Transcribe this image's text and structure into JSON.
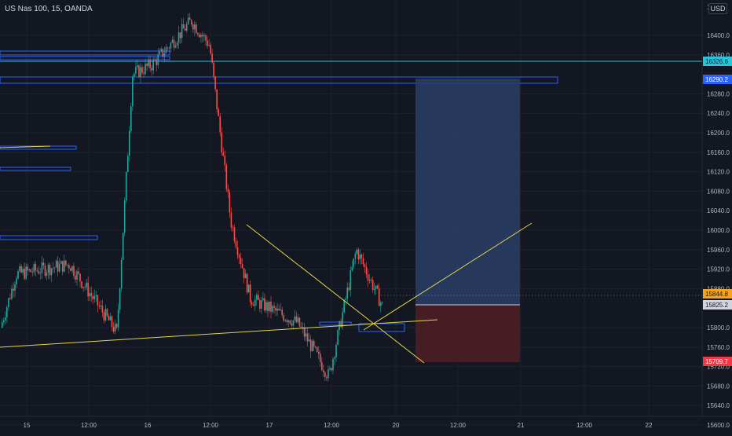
{
  "symbol_title": "US Nas 100, 15, OANDA",
  "currency": "USD",
  "price_axis": {
    "ticks": [
      "16400.0",
      "16360.0",
      "16280.0",
      "16240.0",
      "16200.0",
      "16160.0",
      "16120.0",
      "16080.0",
      "16040.0",
      "16000.0",
      "15960.0",
      "15920.0",
      "15880.0",
      "15800.0",
      "15760.0",
      "15720.0",
      "15680.0",
      "15640.0",
      "15600.0"
    ],
    "top_partial_label": "1…"
  },
  "price_badges": [
    {
      "label": "16326.6",
      "color": "#26c6da",
      "text_color": "#131722"
    },
    {
      "label": "16290.2",
      "color": "#2962ff",
      "text_color": "#ffffff"
    },
    {
      "label": "15844.8",
      "color": "#f7a21b",
      "text_color": "#131722"
    },
    {
      "label": "15825.2",
      "color": "#d1d4dc",
      "text_color": "#131722"
    },
    {
      "label": "15709.7",
      "color": "#f23645",
      "text_color": "#ffffff"
    }
  ],
  "time_axis": [
    "15",
    "12:00",
    "16",
    "12:00",
    "17",
    "12:00",
    "20",
    "12:00",
    "21",
    "12:00",
    "22"
  ],
  "colors": {
    "background": "#131722",
    "grid": "#1e222d",
    "candle_up": "#26a69a",
    "candle_down": "#ef5350",
    "zone_border": "#2962ff",
    "target_zone": "#2a3f66",
    "stop_zone": "#4a1e25",
    "trendline": "#e5d54a",
    "level_line": "#26c6da"
  },
  "chart_data": {
    "type": "candlestick",
    "symbol": "US Nas 100",
    "timeframe": "15",
    "broker": "OANDA",
    "y_range": [
      15590,
      16450
    ],
    "price_path": [
      {
        "t": "15",
        "price": 15800
      },
      {
        "t": "15",
        "price": 15910
      },
      {
        "t": "15 12:00",
        "price": 15930
      },
      {
        "t": "15 12:00",
        "price": 15860
      },
      {
        "t": "16",
        "price": 15790
      },
      {
        "t": "16",
        "price": 16320
      },
      {
        "t": "16",
        "price": 16340
      },
      {
        "t": "16 12:00",
        "price": 16430
      },
      {
        "t": "16 12:00",
        "price": 16380
      },
      {
        "t": "17",
        "price": 16020
      },
      {
        "t": "17",
        "price": 15860
      },
      {
        "t": "17 12:00",
        "price": 15810
      },
      {
        "t": "17 12:00",
        "price": 15700
      },
      {
        "t": "17 12:00",
        "price": 15960
      },
      {
        "t": "20",
        "price": 15844.8
      }
    ],
    "levels": [
      {
        "name": "16326.6",
        "price": 16326.6
      },
      {
        "name": "16290.2",
        "price": 16290.2
      },
      {
        "name": "15844.8",
        "price": 15844.8
      },
      {
        "name": "15825.2",
        "price": 15825.2
      },
      {
        "name": "15709.7",
        "price": 15709.7
      }
    ],
    "position": {
      "entry": 15825.2,
      "target": 16290.2,
      "stop": 15709.7
    }
  }
}
